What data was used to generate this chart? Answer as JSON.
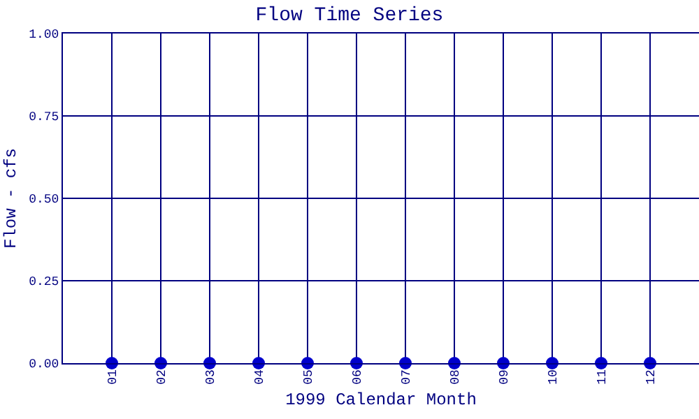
{
  "chart_data": {
    "type": "scatter",
    "title": "Flow Time Series",
    "xlabel": "1999 Calendar Month",
    "ylabel": "Flow - cfs",
    "categories": [
      "01",
      "02",
      "03",
      "04",
      "05",
      "06",
      "07",
      "08",
      "09",
      "10",
      "11",
      "12"
    ],
    "series": [
      {
        "color": "#0000cc",
        "values": [
          0,
          0,
          0,
          0,
          0,
          0,
          0,
          0,
          0,
          0,
          0,
          0
        ]
      }
    ],
    "ylim": [
      0,
      1
    ],
    "yticks": [
      {
        "value": 0,
        "label": "0.00"
      },
      {
        "value": 0.25,
        "label": "0.25"
      },
      {
        "value": 0.5,
        "label": "0.50"
      },
      {
        "value": 0.75,
        "label": "0.75"
      },
      {
        "value": 1,
        "label": "1.00"
      }
    ],
    "grid": true,
    "marker": "circle",
    "legend": false
  }
}
